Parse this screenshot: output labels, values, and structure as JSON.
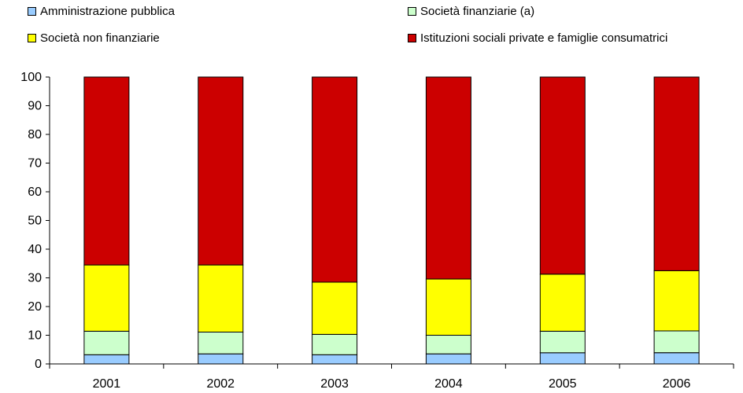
{
  "chart_data": {
    "type": "bar",
    "stacked": true,
    "categories": [
      "2001",
      "2002",
      "2003",
      "2004",
      "2005",
      "2006"
    ],
    "series": [
      {
        "name": "Amministrazione pubblica",
        "color": "#99CCFF",
        "values": [
          3.2,
          3.5,
          3.2,
          3.5,
          3.9,
          3.9
        ]
      },
      {
        "name": "Società finanziarie (a)",
        "color": "#CCFFCC",
        "values": [
          8.2,
          7.6,
          7.1,
          6.5,
          7.5,
          7.6
        ]
      },
      {
        "name": "Società non finanziarie",
        "color": "#FFFF00",
        "values": [
          23.1,
          23.4,
          18.2,
          19.6,
          19.9,
          21.0
        ]
      },
      {
        "name": "Istituzioni sociali private e famiglie consumatrici",
        "color": "#CC0000",
        "values": [
          65.5,
          65.5,
          71.5,
          70.4,
          68.7,
          67.5
        ]
      }
    ],
    "ylim": [
      0,
      100
    ],
    "yticks": [
      "0",
      "10",
      "20",
      "30",
      "40",
      "50",
      "60",
      "70",
      "80",
      "90",
      "100"
    ],
    "grid": false,
    "legend": "top",
    "xlabel": "",
    "ylabel": ""
  }
}
